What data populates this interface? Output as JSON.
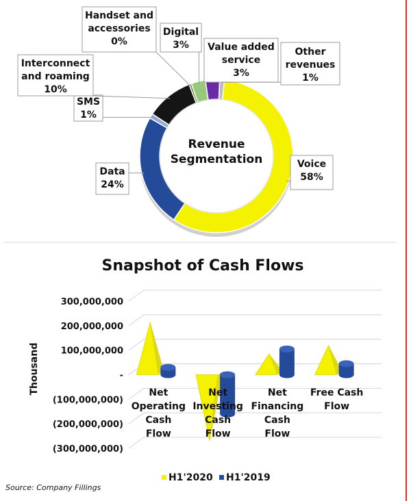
{
  "chart_data": [
    {
      "type": "pie",
      "center_label": [
        "Revenue",
        "Segmentation"
      ],
      "slices": [
        {
          "label": [
            "Voice"
          ],
          "value_label": "58%",
          "value": 58,
          "color": "#f5f200"
        },
        {
          "label": [
            "Data"
          ],
          "value_label": "24%",
          "value": 24,
          "color": "#244a9a"
        },
        {
          "label": [
            "SMS"
          ],
          "value_label": "1%",
          "value": 1,
          "color": "#8fa6d6"
        },
        {
          "label": [
            "Interconnect",
            "and roaming"
          ],
          "value_label": "10%",
          "value": 10,
          "color": "#151515"
        },
        {
          "label": [
            "Handset and",
            "accessories"
          ],
          "value_label": "0%",
          "value": 0.5,
          "color": "#6b8f3a"
        },
        {
          "label": [
            "Digital"
          ],
          "value_label": "3%",
          "value": 3,
          "color": "#98c87a"
        },
        {
          "label": [
            "Value added",
            "service"
          ],
          "value_label": "3%",
          "value": 3,
          "color": "#6a2aa8"
        },
        {
          "label": [
            "Other",
            "revenues"
          ],
          "value_label": "1%",
          "value": 1,
          "color": "#bdbdbd"
        }
      ]
    },
    {
      "type": "bar",
      "title": "Snapshot of Cash Flows",
      "ylabel": "Thousand",
      "ylim": [
        -300000000,
        300000000
      ],
      "yticks": [
        {
          "value": 300000000,
          "label": "300,000,000"
        },
        {
          "value": 200000000,
          "label": "200,000,000"
        },
        {
          "value": 100000000,
          "label": "100,000,000"
        },
        {
          "value": 0,
          "label": "-"
        },
        {
          "value": -100000000,
          "label": "(100,000,000)"
        },
        {
          "value": -200000000,
          "label": "(200,000,000)"
        },
        {
          "value": -300000000,
          "label": "(300,000,000)"
        }
      ],
      "categories": [
        [
          "Net",
          "Operating",
          "Cash",
          "Flow"
        ],
        [
          "Net",
          "Investing",
          "Cash",
          "Flow"
        ],
        [
          "Net",
          "Financing",
          "Cash",
          "Flow"
        ],
        [
          "Free Cash",
          "Flow"
        ]
      ],
      "series": [
        {
          "name": "H1'2020",
          "color": "#f5f200",
          "values": [
            215000000,
            -270000000,
            85000000,
            120000000
          ]
        },
        {
          "name": "H1'2019",
          "color": "#244a9a",
          "values": [
            30000000,
            -160000000,
            105000000,
            45000000
          ]
        }
      ],
      "source": "Source: Company Fillings"
    }
  ]
}
